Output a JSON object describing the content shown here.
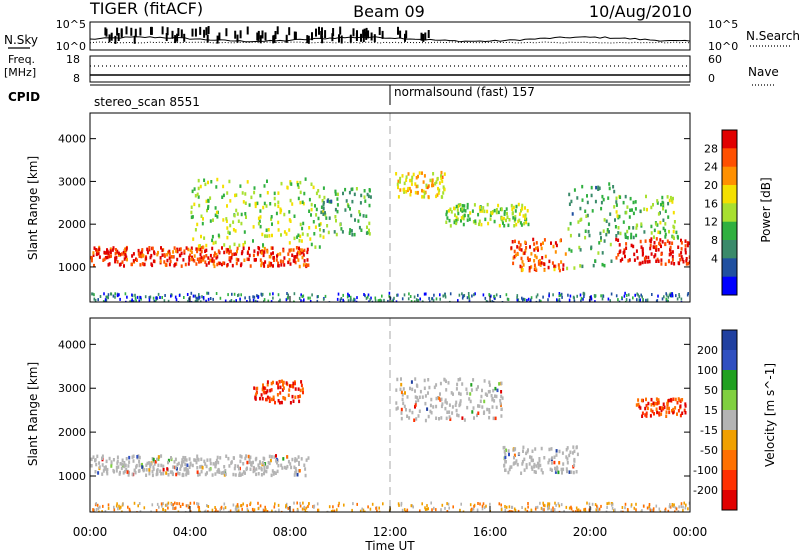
{
  "header": {
    "radar": "TIGER (fitACF)",
    "beam": "Beam 09",
    "date": "10/Aug/2010"
  },
  "nsky_panel": {
    "left_label": "N.Sky",
    "left_ticks": [
      "10^5",
      "10^0"
    ],
    "right_ticks": [
      "10^5",
      "10^0"
    ],
    "right_label": "N.Search"
  },
  "freq_panel": {
    "left_label_line1": "Freq.",
    "left_label_line2": "[MHz]",
    "left_ticks": [
      "18",
      "8"
    ],
    "right_ticks": [
      "60",
      "0"
    ],
    "right_label": "Nave"
  },
  "cpid": {
    "label": "CPID",
    "modes": [
      {
        "name": "stereo_scan 8551",
        "start_hour": 0
      },
      {
        "name": "normalsound (fast) 157",
        "start_hour": 12
      }
    ]
  },
  "chart_data": [
    {
      "type": "heatmap",
      "title": "",
      "ylabel": "Slant Range [km]",
      "xlabel": "",
      "xlim_hours": [
        0,
        24
      ],
      "ylim": [
        180,
        4600
      ],
      "y_ticks": [
        "1000",
        "2000",
        "3000",
        "4000"
      ],
      "colorbar_label": "Power [dB]",
      "colorbar_ticks": [
        "28",
        "24",
        "20",
        "16",
        "12",
        "8",
        "4"
      ],
      "colorbar_colors": [
        "#e00000",
        "#ff5000",
        "#ff9000",
        "#f4e000",
        "#a8e030",
        "#30b040",
        "#3a8a6a",
        "#2050a0",
        "#0000ff"
      ],
      "echo_bands": [
        {
          "t0": 0.0,
          "t1": 8.7,
          "r0": 1050,
          "r1": 1500,
          "power": 26
        },
        {
          "t0": 4.0,
          "t1": 9.3,
          "r0": 1500,
          "r1": 3100,
          "power": 14
        },
        {
          "t0": 9.2,
          "t1": 11.2,
          "r0": 1700,
          "r1": 2900,
          "power": 10
        },
        {
          "t0": 12.2,
          "t1": 14.2,
          "r0": 2650,
          "r1": 3250,
          "power": 18
        },
        {
          "t0": 14.2,
          "t1": 17.5,
          "r0": 2000,
          "r1": 2500,
          "power": 14
        },
        {
          "t0": 16.8,
          "t1": 19.0,
          "r0": 950,
          "r1": 1700,
          "power": 24
        },
        {
          "t0": 19.0,
          "t1": 21.0,
          "r0": 1000,
          "r1": 3000,
          "power": 10
        },
        {
          "t0": 21.0,
          "t1": 24.0,
          "r0": 1100,
          "r1": 1700,
          "power": 28
        },
        {
          "t0": 21.0,
          "t1": 23.5,
          "r0": 1700,
          "r1": 2700,
          "power": 12
        }
      ]
    },
    {
      "type": "heatmap",
      "title": "",
      "ylabel": "Slant Range [km]",
      "xlabel": "Time UT",
      "x_ticks": [
        "00:00",
        "04:00",
        "08:00",
        "12:00",
        "16:00",
        "20:00",
        "00:00"
      ],
      "xlim_hours": [
        0,
        24
      ],
      "ylim": [
        180,
        4600
      ],
      "y_ticks": [
        "1000",
        "2000",
        "3000",
        "4000"
      ],
      "colorbar_label": "Velocity [m s^-1]",
      "colorbar_ticks": [
        "200",
        "100",
        "50",
        "15",
        "-15",
        "-50",
        "-100",
        "-200"
      ],
      "colorbar_colors": [
        "#2040a0",
        "#3050c0",
        "#20a020",
        "#80d040",
        "#b4b4b4",
        "#f0a000",
        "#ff7000",
        "#ff3000",
        "#e00000"
      ],
      "ground_scatter_color": "#b4b4b4",
      "echo_bands": [
        {
          "t0": 0.0,
          "t1": 8.7,
          "r0": 1050,
          "r1": 1500,
          "velocity": 0
        },
        {
          "t0": 12.2,
          "t1": 16.5,
          "r0": 2300,
          "r1": 3250,
          "velocity": 0
        },
        {
          "t0": 16.5,
          "t1": 19.5,
          "r0": 1100,
          "r1": 1700,
          "velocity": 0
        },
        {
          "t0": 21.8,
          "t1": 23.8,
          "r0": 2400,
          "r1": 2800,
          "velocity": -150
        },
        {
          "t0": 6.5,
          "t1": 8.5,
          "r0": 2700,
          "r1": 3200,
          "velocity": -80
        }
      ]
    }
  ]
}
